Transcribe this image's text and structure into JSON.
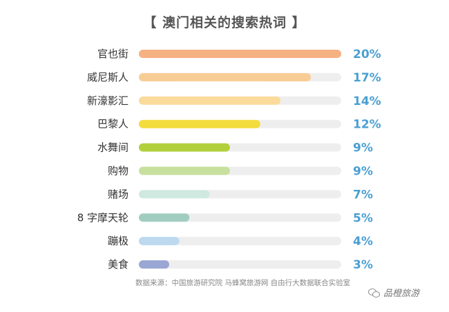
{
  "title": "【 澳门相关的搜索热词 】",
  "source": "数据来源：中国旅游研究院 马蜂窝旅游网 自由行大数据联合实验室",
  "watermark": "品橙旅游",
  "chart_data": {
    "type": "bar",
    "orientation": "horizontal",
    "categories": [
      "官也街",
      "威尼斯人",
      "新濠影汇",
      "巴黎人",
      "水舞间",
      "购物",
      "赌场",
      "8 字摩天轮",
      "蹦极",
      "美食"
    ],
    "values": [
      20,
      17,
      14,
      12,
      9,
      9,
      7,
      5,
      4,
      3
    ],
    "labels": [
      "20%",
      "17%",
      "14%",
      "12%",
      "9%",
      "9%",
      "7%",
      "5%",
      "4%",
      "3%"
    ],
    "unit": "%",
    "xlim": [
      0,
      20
    ],
    "bar_colors": [
      "#f6b183",
      "#f8cd95",
      "#fbdb9c",
      "#f3dc3e",
      "#b2cf3c",
      "#c7e09d",
      "#cfe9e1",
      "#a1cdc0",
      "#bcd9f0",
      "#9aa7d4"
    ],
    "track_color": "#eeeeee",
    "value_label_color": "#4a9fd2",
    "category_label_color": "#333333",
    "grid": false,
    "legend": "none"
  }
}
